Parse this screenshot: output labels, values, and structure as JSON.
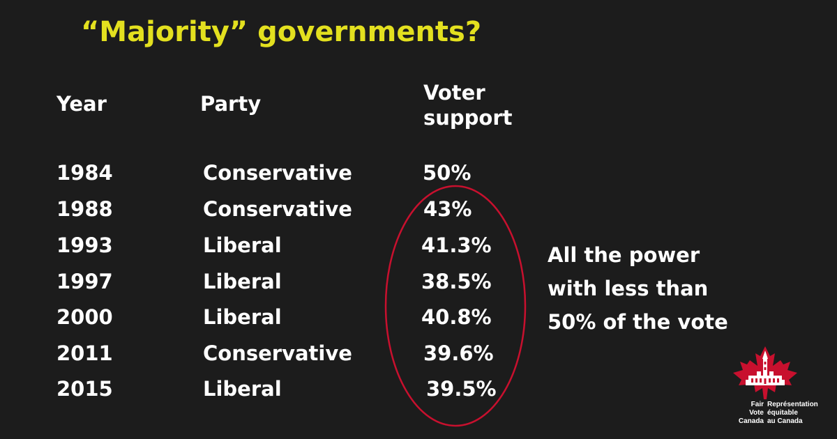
{
  "title": "“Majority” governments?",
  "headers": {
    "year": "Year",
    "party": "Party",
    "support_line1": "Voter",
    "support_line2": "support"
  },
  "rows": [
    {
      "year": "1984",
      "party": "Conservative",
      "support": "50%"
    },
    {
      "year": "1988",
      "party": "Conservative",
      "support": "43%"
    },
    {
      "year": "1993",
      "party": "Liberal",
      "support": "41.3%"
    },
    {
      "year": "1997",
      "party": "Liberal",
      "support": "38.5%"
    },
    {
      "year": "2000",
      "party": "Liberal",
      "support": "40.8%"
    },
    {
      "year": "2011",
      "party": "Conservative",
      "support": "39.6%"
    },
    {
      "year": "2015",
      "party": "Liberal",
      "support": "39.5%"
    }
  ],
  "note": {
    "line1": "All the power",
    "line2": "with less than",
    "line3": "50% of the vote"
  },
  "logo": {
    "en_line1": "Fair",
    "en_line2": "Vote",
    "en_line3": "Canada",
    "fr_line1": "Représentation",
    "fr_line2": "équitable",
    "fr_line3": "au Canada",
    "icon": "maple-leaf-parliament-icon"
  },
  "colors": {
    "background": "#1c1c1c",
    "title": "#e3e01f",
    "text": "#ffffff",
    "highlight_ellipse": "#c8102e",
    "logo_red": "#c8102e"
  }
}
